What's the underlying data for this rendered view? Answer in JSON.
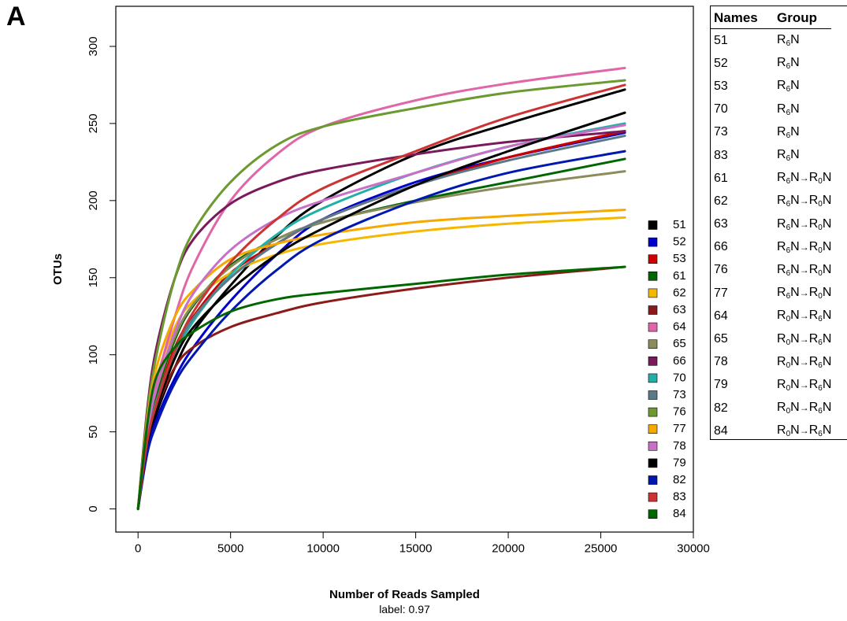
{
  "panel_label": "A",
  "chart_data": {
    "type": "line",
    "title": "",
    "xlabel": "Number of Reads Sampled",
    "xlabel_sub": "label: 0.97",
    "ylabel": "OTUs",
    "xlim": [
      -1200,
      30000
    ],
    "ylim": [
      -15,
      326
    ],
    "xticks": [
      0,
      5000,
      10000,
      15000,
      20000,
      25000,
      30000
    ],
    "yticks": [
      0,
      50,
      100,
      150,
      200,
      250,
      300
    ],
    "legend_position": "right, inside plot",
    "series": [
      {
        "name": "51",
        "color": "#000000",
        "x": [
          0,
          500,
          1000,
          2000,
          3000,
          5000,
          7500,
          10000,
          15000,
          20000,
          26300
        ],
        "y": [
          0,
          40,
          62,
          92,
          115,
          145,
          177,
          200,
          230,
          250,
          272
        ]
      },
      {
        "name": "52",
        "color": "#0000cc",
        "x": [
          0,
          500,
          1000,
          2000,
          3000,
          5000,
          7500,
          10000,
          15000,
          20000,
          26300
        ],
        "y": [
          0,
          38,
          58,
          85,
          105,
          135,
          165,
          188,
          212,
          228,
          244
        ]
      },
      {
        "name": "53",
        "color": "#cc0000",
        "x": [
          0,
          500,
          1000,
          2000,
          3000,
          5000,
          7500,
          10000,
          15000,
          20000,
          26300
        ],
        "y": [
          0,
          45,
          70,
          105,
          125,
          153,
          172,
          188,
          210,
          228,
          245
        ]
      },
      {
        "name": "61",
        "color": "#006600",
        "x": [
          0,
          500,
          1000,
          2000,
          3000,
          5000,
          7500,
          10000,
          15000,
          20000,
          26300
        ],
        "y": [
          0,
          48,
          75,
          110,
          132,
          158,
          175,
          186,
          200,
          212,
          227
        ]
      },
      {
        "name": "62",
        "color": "#f5b800",
        "x": [
          0,
          500,
          1000,
          2000,
          3000,
          5000,
          7500,
          10000,
          15000,
          20000,
          26300
        ],
        "y": [
          0,
          55,
          85,
          118,
          135,
          153,
          165,
          172,
          180,
          185,
          189
        ]
      },
      {
        "name": "63",
        "color": "#8b1a1a",
        "x": [
          0,
          500,
          1000,
          2000,
          3000,
          5000,
          7500,
          10000,
          15000,
          20000,
          26300
        ],
        "y": [
          0,
          42,
          65,
          92,
          105,
          118,
          127,
          134,
          143,
          150,
          157
        ]
      },
      {
        "name": "64",
        "color": "#e066a8",
        "x": [
          0,
          500,
          1000,
          2000,
          3000,
          5000,
          7500,
          10000,
          15000,
          20000,
          26300
        ],
        "y": [
          0,
          52,
          82,
          125,
          158,
          200,
          230,
          248,
          265,
          276,
          286
        ]
      },
      {
        "name": "65",
        "color": "#8b8b5c",
        "x": [
          0,
          500,
          1000,
          2000,
          3000,
          5000,
          7500,
          10000,
          15000,
          20000,
          26300
        ],
        "y": [
          0,
          50,
          78,
          112,
          133,
          157,
          175,
          186,
          199,
          209,
          219
        ]
      },
      {
        "name": "66",
        "color": "#7a1a5a",
        "x": [
          0,
          500,
          1000,
          2000,
          3000,
          5000,
          7500,
          10000,
          15000,
          20000,
          26300
        ],
        "y": [
          0,
          65,
          105,
          150,
          175,
          198,
          212,
          220,
          230,
          238,
          245
        ]
      },
      {
        "name": "70",
        "color": "#20b0a8",
        "x": [
          0,
          500,
          1000,
          2000,
          3000,
          5000,
          7500,
          10000,
          15000,
          20000,
          26300
        ],
        "y": [
          0,
          44,
          68,
          100,
          122,
          152,
          178,
          195,
          218,
          235,
          250
        ]
      },
      {
        "name": "73",
        "color": "#5a7a8a",
        "x": [
          0,
          500,
          1000,
          2000,
          3000,
          5000,
          7500,
          10000,
          15000,
          20000,
          26300
        ],
        "y": [
          0,
          46,
          70,
          102,
          124,
          150,
          172,
          188,
          210,
          226,
          242
        ]
      },
      {
        "name": "76",
        "color": "#6b9a30",
        "x": [
          0,
          500,
          1000,
          2000,
          3000,
          5000,
          7500,
          10000,
          15000,
          20000,
          26300
        ],
        "y": [
          0,
          62,
          100,
          150,
          180,
          212,
          236,
          248,
          260,
          270,
          278
        ]
      },
      {
        "name": "77",
        "color": "#f5a800",
        "x": [
          0,
          500,
          1000,
          2000,
          3000,
          5000,
          7500,
          10000,
          15000,
          20000,
          26300
        ],
        "y": [
          0,
          58,
          92,
          125,
          142,
          162,
          172,
          178,
          186,
          190,
          194
        ]
      },
      {
        "name": "78",
        "color": "#c870c8",
        "x": [
          0,
          500,
          1000,
          2000,
          3000,
          5000,
          7500,
          10000,
          15000,
          20000,
          26300
        ],
        "y": [
          0,
          50,
          78,
          115,
          140,
          168,
          188,
          200,
          218,
          235,
          249
        ]
      },
      {
        "name": "79",
        "color": "#000000",
        "x": [
          0,
          500,
          1000,
          2000,
          3000,
          5000,
          7500,
          10000,
          15000,
          20000,
          26300
        ],
        "y": [
          0,
          42,
          65,
          98,
          118,
          142,
          165,
          182,
          210,
          232,
          257
        ]
      },
      {
        "name": "82",
        "color": "#0018b0",
        "x": [
          0,
          500,
          1000,
          2000,
          3000,
          5000,
          7500,
          10000,
          15000,
          20000,
          26300
        ],
        "y": [
          0,
          36,
          55,
          82,
          100,
          128,
          155,
          175,
          200,
          218,
          232
        ]
      },
      {
        "name": "83",
        "color": "#cc3333",
        "x": [
          0,
          500,
          1000,
          2000,
          3000,
          5000,
          7500,
          10000,
          15000,
          20000,
          26300
        ],
        "y": [
          0,
          44,
          68,
          103,
          128,
          160,
          188,
          208,
          232,
          254,
          275
        ]
      },
      {
        "name": "84",
        "color": "#006600",
        "x": [
          0,
          500,
          1000,
          2000,
          3000,
          5000,
          7500,
          10000,
          15000,
          20000,
          26300
        ],
        "y": [
          0,
          55,
          86,
          105,
          115,
          128,
          136,
          140,
          146,
          152,
          157
        ]
      }
    ]
  },
  "group_table": {
    "headers": [
      "Names",
      "Group"
    ],
    "rows": [
      {
        "name": "51",
        "group": "R6N"
      },
      {
        "name": "52",
        "group": "R6N"
      },
      {
        "name": "53",
        "group": "R6N"
      },
      {
        "name": "70",
        "group": "R6N"
      },
      {
        "name": "73",
        "group": "R6N"
      },
      {
        "name": "83",
        "group": "R6N"
      },
      {
        "name": "61",
        "group": "R6N→R0N"
      },
      {
        "name": "62",
        "group": "R6N→R0N"
      },
      {
        "name": "63",
        "group": "R6N→R0N"
      },
      {
        "name": "66",
        "group": "R6N→R0N"
      },
      {
        "name": "76",
        "group": "R6N→R0N"
      },
      {
        "name": "77",
        "group": "R6N→R0N"
      },
      {
        "name": "64",
        "group": "R0N→R6N"
      },
      {
        "name": "65",
        "group": "R0N→R6N"
      },
      {
        "name": "78",
        "group": "R0N→R6N"
      },
      {
        "name": "79",
        "group": "R0N→R6N"
      },
      {
        "name": "82",
        "group": "R0N→R6N"
      },
      {
        "name": "84",
        "group": "R0N→R6N"
      }
    ]
  }
}
